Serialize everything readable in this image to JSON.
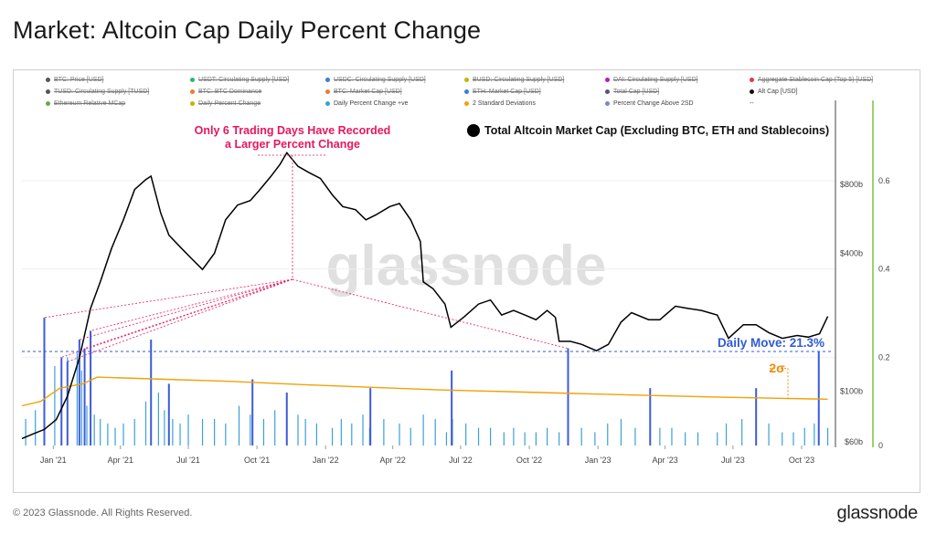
{
  "title": "Market: Altcoin Cap Daily Percent Change",
  "footer": {
    "copyright": "© 2023 Glassnode. All Rights Reserved.",
    "logo": "glassnode"
  },
  "watermark": "glassnode",
  "legend": [
    {
      "label": "BTC: Price [USD]",
      "color": "#555555",
      "active": false
    },
    {
      "label": "USDT: Circulating Supply [USD]",
      "color": "#2bb673",
      "active": false
    },
    {
      "label": "USDC: Circulating Supply [USD]",
      "color": "#3b7dd8",
      "active": false
    },
    {
      "label": "BUSD: Circulating Supply [USD]",
      "color": "#c9b200",
      "active": false
    },
    {
      "label": "DAI: Circulating Supply [USD]",
      "color": "#b31fb3",
      "active": false
    },
    {
      "label": "Aggregate Stablecoin Cap (Top 5) [USD]",
      "color": "#e53935",
      "active": false
    },
    {
      "label": "TUSD: Circulating Supply [TUSD]",
      "color": "#555555",
      "active": false
    },
    {
      "label": "BTC: BTC Dominance",
      "color": "#f0792b",
      "active": false
    },
    {
      "label": "BTC: Market Cap [USD]",
      "color": "#f0792b",
      "active": false
    },
    {
      "label": "ETH: Market Cap [USD]",
      "color": "#3b7dd8",
      "active": false
    },
    {
      "label": "Total Cap [USD]",
      "color": "#555577",
      "active": false
    },
    {
      "label": "Alt Cap [USD]",
      "color": "#111111",
      "active": true
    },
    {
      "label": "Ethereum Relative MCap",
      "color": "#6aa84f",
      "active": false
    },
    {
      "label": "Daily Percent Change",
      "color": "#c9b200",
      "active": false
    },
    {
      "label": "Daily Percent Change +ve",
      "color": "#3aa0d8",
      "active": true
    },
    {
      "label": "2 Standard Deviations",
      "color": "#f2a007",
      "active": true
    },
    {
      "label": "Percent Change Above 2SD",
      "color": "#7986cb",
      "active": true
    },
    {
      "label": "--",
      "color": "",
      "active": true
    }
  ],
  "annotations": {
    "trading_days": "Only 6 Trading Days Have Recorded",
    "trading_days_line2": "a Larger Percent Change",
    "series_title": "Total Altcoin Market Cap (Excluding BTC, ETH and Stablecoins)",
    "daily_move": "Daily Move: 21.3%",
    "sigma": "2σ"
  },
  "colors": {
    "price": "#000000",
    "pct_change": "#3aa0d8",
    "above_2sd": "#3d5bd9",
    "std_line": "#f2a007",
    "annotation": "#e8175d",
    "daily_move": "#2f5bd6",
    "right_axis": "#7cc242"
  },
  "chart_data": {
    "type": "line",
    "x_ticks": [
      "Jan '21",
      "Apr '21",
      "Jul '21",
      "Oct '21",
      "Jan '22",
      "Apr '22",
      "Jul '22",
      "Oct '22",
      "Jan '23",
      "Apr '23",
      "Jul '23",
      "Oct '23"
    ],
    "y_left_ticks": [
      "$800b",
      "$400b",
      "$100b",
      "$60b"
    ],
    "y_left_scale": "log",
    "y_right_ticks": [
      "0.6",
      "0.4",
      "0.2",
      "0"
    ],
    "y_right_range": [
      0,
      0.7
    ],
    "series": [
      {
        "name": "Alt Cap [USD]",
        "unit": "USD billions",
        "x": [
          "2020-11-20",
          "2020-12-05",
          "2020-12-20",
          "2021-01-05",
          "2021-01-20",
          "2021-02-05",
          "2021-02-20",
          "2021-03-05",
          "2021-03-20",
          "2021-04-05",
          "2021-04-20",
          "2021-05-05",
          "2021-05-12",
          "2021-05-25",
          "2021-06-05",
          "2021-06-22",
          "2021-07-05",
          "2021-07-20",
          "2021-08-05",
          "2021-08-20",
          "2021-09-05",
          "2021-09-22",
          "2021-10-05",
          "2021-10-20",
          "2021-11-01",
          "2021-11-10",
          "2021-11-25",
          "2021-12-10",
          "2021-12-25",
          "2022-01-10",
          "2022-01-24",
          "2022-02-10",
          "2022-02-24",
          "2022-03-10",
          "2022-03-28",
          "2022-04-10",
          "2022-04-25",
          "2022-05-08",
          "2022-05-12",
          "2022-05-25",
          "2022-06-10",
          "2022-06-18",
          "2022-07-05",
          "2022-07-25",
          "2022-08-10",
          "2022-08-25",
          "2022-09-10",
          "2022-09-25",
          "2022-10-10",
          "2022-10-25",
          "2022-11-05",
          "2022-11-10",
          "2022-11-25",
          "2022-12-10",
          "2022-12-30",
          "2023-01-15",
          "2023-02-01",
          "2023-02-15",
          "2023-03-10",
          "2023-03-25",
          "2023-04-15",
          "2023-05-01",
          "2023-05-20",
          "2023-06-10",
          "2023-06-25",
          "2023-07-15",
          "2023-08-01",
          "2023-08-18",
          "2023-09-05",
          "2023-09-25",
          "2023-10-10",
          "2023-10-25",
          "2023-11-05"
        ],
        "values": [
          62,
          65,
          68,
          75,
          95,
          140,
          230,
          300,
          420,
          560,
          760,
          840,
          870,
          600,
          480,
          420,
          380,
          340,
          400,
          560,
          650,
          680,
          760,
          870,
          980,
          1100,
          960,
          900,
          850,
          720,
          640,
          620,
          560,
          590,
          640,
          660,
          560,
          450,
          300,
          280,
          240,
          190,
          210,
          240,
          250,
          215,
          225,
          215,
          205,
          225,
          210,
          165,
          165,
          160,
          150,
          160,
          200,
          220,
          205,
          205,
          235,
          230,
          225,
          215,
          170,
          195,
          195,
          180,
          170,
          175,
          172,
          178,
          212
        ]
      },
      {
        "name": "Daily Percent Change +ve",
        "unit": "fraction",
        "x": [
          "2020-11-25",
          "2020-12-08",
          "2020-12-20",
          "2021-01-03",
          "2021-01-12",
          "2021-01-20",
          "2021-02-02",
          "2021-02-05",
          "2021-02-08",
          "2021-02-12",
          "2021-02-15",
          "2021-02-20",
          "2021-02-25",
          "2021-03-05",
          "2021-03-15",
          "2021-03-25",
          "2021-04-05",
          "2021-04-20",
          "2021-05-05",
          "2021-05-12",
          "2021-05-22",
          "2021-05-30",
          "2021-06-10",
          "2021-06-20",
          "2021-07-01",
          "2021-07-20",
          "2021-08-05",
          "2021-08-20",
          "2021-09-07",
          "2021-09-22",
          "2021-10-10",
          "2021-10-25",
          "2021-11-10",
          "2021-11-25",
          "2021-12-05",
          "2021-12-20",
          "2022-01-10",
          "2022-01-22",
          "2022-02-05",
          "2022-02-20",
          "2022-03-01",
          "2022-03-20",
          "2022-04-10",
          "2022-04-25",
          "2022-05-12",
          "2022-05-28",
          "2022-06-12",
          "2022-06-20",
          "2022-07-08",
          "2022-07-25",
          "2022-08-10",
          "2022-08-28",
          "2022-09-10",
          "2022-09-25",
          "2022-10-10",
          "2022-10-25",
          "2022-11-10",
          "2022-11-22",
          "2022-12-10",
          "2022-12-28",
          "2023-01-14",
          "2023-02-01",
          "2023-02-20",
          "2023-03-12",
          "2023-03-25",
          "2023-04-10",
          "2023-04-28",
          "2023-05-15",
          "2023-06-10",
          "2023-06-22",
          "2023-07-13",
          "2023-08-01",
          "2023-08-18",
          "2023-09-05",
          "2023-09-20",
          "2023-10-05",
          "2023-10-18",
          "2023-10-24",
          "2023-11-05"
        ],
        "values": [
          0.06,
          0.08,
          0.29,
          0.18,
          0.05,
          0.2,
          0.21,
          0.24,
          0.17,
          0.22,
          0.09,
          0.26,
          0.07,
          0.06,
          0.05,
          0.04,
          0.05,
          0.06,
          0.1,
          0.24,
          0.12,
          0.08,
          0.06,
          0.05,
          0.07,
          0.06,
          0.06,
          0.05,
          0.09,
          0.07,
          0.06,
          0.08,
          0.05,
          0.07,
          0.06,
          0.05,
          0.04,
          0.06,
          0.05,
          0.07,
          0.04,
          0.06,
          0.05,
          0.04,
          0.07,
          0.06,
          0.03,
          0.06,
          0.05,
          0.04,
          0.04,
          0.03,
          0.04,
          0.03,
          0.03,
          0.04,
          0.03,
          0.22,
          0.04,
          0.03,
          0.05,
          0.06,
          0.04,
          0.05,
          0.04,
          0.04,
          0.03,
          0.03,
          0.03,
          0.05,
          0.06,
          0.04,
          0.05,
          0.03,
          0.03,
          0.04,
          0.05,
          0.213,
          0.04
        ]
      },
      {
        "name": "Percent Change Above 2SD",
        "unit": "fraction",
        "x": [
          "2020-12-20",
          "2021-01-12",
          "2021-01-20",
          "2021-02-05",
          "2021-02-12",
          "2021-02-20",
          "2021-05-12",
          "2021-06-05",
          "2021-09-25",
          "2021-11-10",
          "2022-03-02",
          "2022-06-19",
          "2022-11-22",
          "2023-03-12",
          "2023-08-01",
          "2023-10-24"
        ],
        "values": [
          0.29,
          0.2,
          0.19,
          0.24,
          0.22,
          0.26,
          0.24,
          0.14,
          0.15,
          0.12,
          0.13,
          0.17,
          0.22,
          0.13,
          0.13,
          0.213
        ]
      },
      {
        "name": "2 Standard Deviations",
        "unit": "fraction",
        "x": [
          "2020-11-20",
          "2020-12-15",
          "2021-01-10",
          "2021-02-10",
          "2021-03-01",
          "2021-06-01",
          "2021-09-01",
          "2021-12-01",
          "2022-03-01",
          "2022-06-01",
          "2022-09-01",
          "2022-12-01",
          "2023-03-01",
          "2023-06-01",
          "2023-09-01",
          "2023-11-05"
        ],
        "values": [
          0.09,
          0.1,
          0.13,
          0.14,
          0.155,
          0.15,
          0.145,
          0.138,
          0.132,
          0.126,
          0.122,
          0.118,
          0.114,
          0.11,
          0.107,
          0.105
        ]
      }
    ]
  }
}
